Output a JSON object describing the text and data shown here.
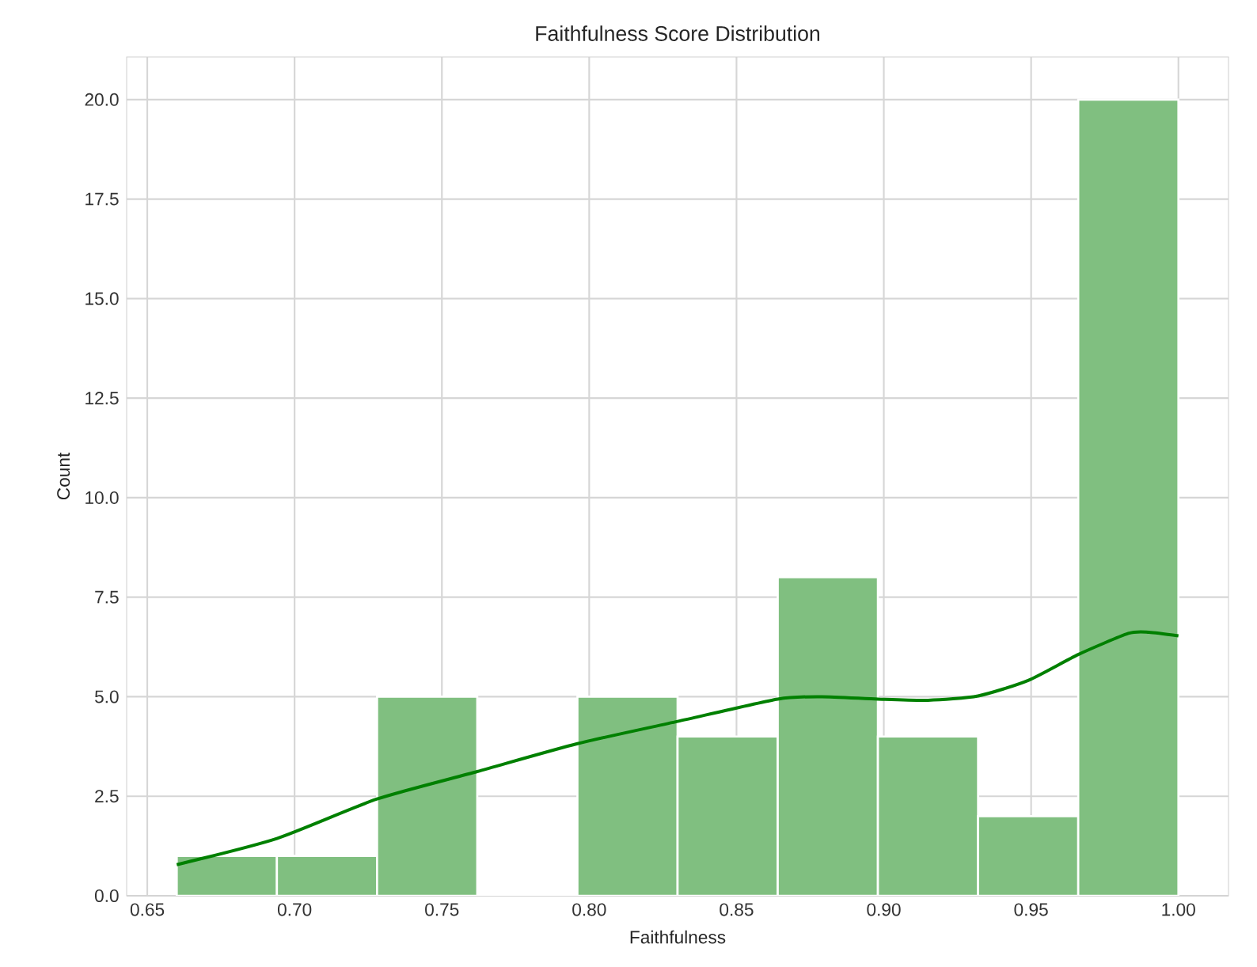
{
  "chart_data": {
    "type": "histogram",
    "title": "Faithfulness Score Distribution",
    "xlabel": "Faithfulness",
    "ylabel": "Count",
    "bins": [
      0.66,
      0.694,
      0.728,
      0.762,
      0.796,
      0.83,
      0.864,
      0.898,
      0.932,
      0.966,
      1.0
    ],
    "series": [
      {
        "color": "#80bf80",
        "values": [
          1,
          1,
          5,
          0,
          5,
          4,
          8,
          4,
          2,
          20
        ]
      },
      {
        "type": "line",
        "color": "#008000",
        "x": [
          0.66,
          0.694,
          0.728,
          0.762,
          0.796,
          0.83,
          0.864,
          0.879,
          0.898,
          0.915,
          0.932,
          0.949,
          0.966,
          0.983,
          0.99,
          1.0
        ],
        "values": [
          0.78,
          1.44,
          2.43,
          3.12,
          3.82,
          4.38,
          4.94,
          5.0,
          4.94,
          4.91,
          5.02,
          5.41,
          6.06,
          6.59,
          6.62,
          6.53
        ]
      }
    ],
    "xlim": [
      0.643,
      1.017
    ],
    "ylim": [
      0,
      21.07
    ],
    "xticks": [
      {
        "value": 0.65,
        "label": "0.65"
      },
      {
        "value": 0.7,
        "label": "0.70"
      },
      {
        "value": 0.75,
        "label": "0.75"
      },
      {
        "value": 0.8,
        "label": "0.80"
      },
      {
        "value": 0.85,
        "label": "0.85"
      },
      {
        "value": 0.9,
        "label": "0.90"
      },
      {
        "value": 0.95,
        "label": "0.95"
      },
      {
        "value": 1.0,
        "label": "1.00"
      }
    ],
    "yticks": [
      {
        "value": 0,
        "label": "0.0"
      },
      {
        "value": 2.5,
        "label": "2.5"
      },
      {
        "value": 5,
        "label": "5.0"
      },
      {
        "value": 7.5,
        "label": "7.5"
      },
      {
        "value": 10,
        "label": "10.0"
      },
      {
        "value": 12.5,
        "label": "12.5"
      },
      {
        "value": 15,
        "label": "15.0"
      },
      {
        "value": 17.5,
        "label": "17.5"
      },
      {
        "value": 20,
        "label": "20.0"
      }
    ],
    "grid": true
  }
}
